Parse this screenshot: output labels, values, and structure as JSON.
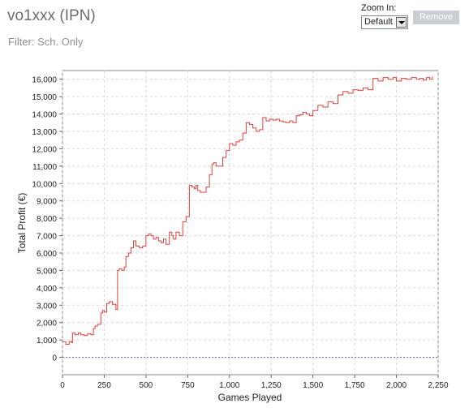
{
  "header": {
    "title": "vo1xxx (IPN)",
    "filter": "Filter: Sch. Only"
  },
  "controls": {
    "zoom_label": "Zoom In:",
    "zoom_value": "Default",
    "remove_label": "Remove"
  },
  "colors": {
    "line": "#e0413a",
    "zero_line": "#6a5acd",
    "grid": "#d9d9d9"
  },
  "chart_data": {
    "type": "line",
    "xlabel": "Games Played",
    "ylabel": "Total Profit (€)",
    "xlim": [
      0,
      2250
    ],
    "ylim": [
      -1000,
      16500
    ],
    "xticks": [
      0,
      250,
      500,
      750,
      1000,
      1250,
      1500,
      1750,
      2000,
      2250
    ],
    "xtick_labels": [
      "0",
      "250",
      "500",
      "750",
      "1,000",
      "1,250",
      "1,500",
      "1,750",
      "2,000",
      "2,250"
    ],
    "yticks": [
      0,
      1000,
      2000,
      3000,
      4000,
      5000,
      6000,
      7000,
      8000,
      9000,
      10000,
      11000,
      12000,
      13000,
      14000,
      15000,
      16000
    ],
    "ytick_labels": [
      "0",
      "1,000",
      "2,000",
      "3,000",
      "4,000",
      "5,000",
      "6,000",
      "7,000",
      "8,000",
      "9,000",
      "10,000",
      "11,000",
      "12,000",
      "13,000",
      "14,000",
      "15,000",
      "16,000"
    ],
    "grid": true,
    "series": [
      {
        "x": [
          0,
          20,
          40,
          55,
          60,
          75,
          95,
          110,
          130,
          150,
          170,
          185,
          195,
          210,
          230,
          240,
          250,
          265,
          280,
          300,
          320,
          330,
          340,
          355,
          370,
          380,
          395,
          410,
          425,
          440,
          460,
          480,
          500,
          515,
          530,
          545,
          560,
          575,
          590,
          605,
          620,
          640,
          655,
          665,
          680,
          700,
          720,
          740,
          760,
          775,
          790,
          800,
          810,
          825,
          840,
          860,
          880,
          895,
          905,
          920,
          940,
          960,
          980,
          1000,
          1020,
          1040,
          1060,
          1080,
          1100,
          1120,
          1140,
          1160,
          1180,
          1200,
          1220,
          1240,
          1260,
          1280,
          1300,
          1320,
          1340,
          1360,
          1380,
          1400,
          1420,
          1440,
          1460,
          1480,
          1500,
          1530,
          1560,
          1590,
          1620,
          1650,
          1680,
          1710,
          1740,
          1770,
          1800,
          1830,
          1860,
          1890,
          1920,
          1950,
          1980,
          2000,
          2030,
          2060,
          2090,
          2120,
          2140,
          2160,
          2180,
          2200,
          2215
        ],
        "y": [
          900,
          750,
          900,
          850,
          1400,
          1300,
          1400,
          1300,
          1250,
          1350,
          1300,
          1650,
          1800,
          1900,
          2550,
          2700,
          2600,
          3100,
          3200,
          3050,
          2750,
          5000,
          5100,
          5000,
          5200,
          5800,
          6000,
          6300,
          6700,
          6400,
          6300,
          6400,
          7000,
          7100,
          7000,
          6800,
          6900,
          6700,
          6600,
          6800,
          6500,
          7200,
          7000,
          6800,
          7200,
          7000,
          7800,
          8100,
          9900,
          9800,
          9700,
          9900,
          9600,
          9500,
          9500,
          9800,
          10500,
          11100,
          11200,
          11000,
          11000,
          11500,
          11900,
          12300,
          12200,
          12400,
          12500,
          12900,
          13500,
          13400,
          13200,
          13000,
          13100,
          13800,
          13600,
          13700,
          13650,
          13700,
          13600,
          13550,
          13500,
          13600,
          13500,
          13900,
          13950,
          14100,
          14000,
          13900,
          14200,
          14500,
          14400,
          14700,
          14600,
          15100,
          15300,
          15200,
          15400,
          15350,
          15500,
          15400,
          16050,
          15900,
          16100,
          16000,
          16100,
          15900,
          16050,
          16000,
          16100,
          16000,
          16050,
          15950,
          16100,
          16000,
          16150
        ]
      }
    ]
  }
}
